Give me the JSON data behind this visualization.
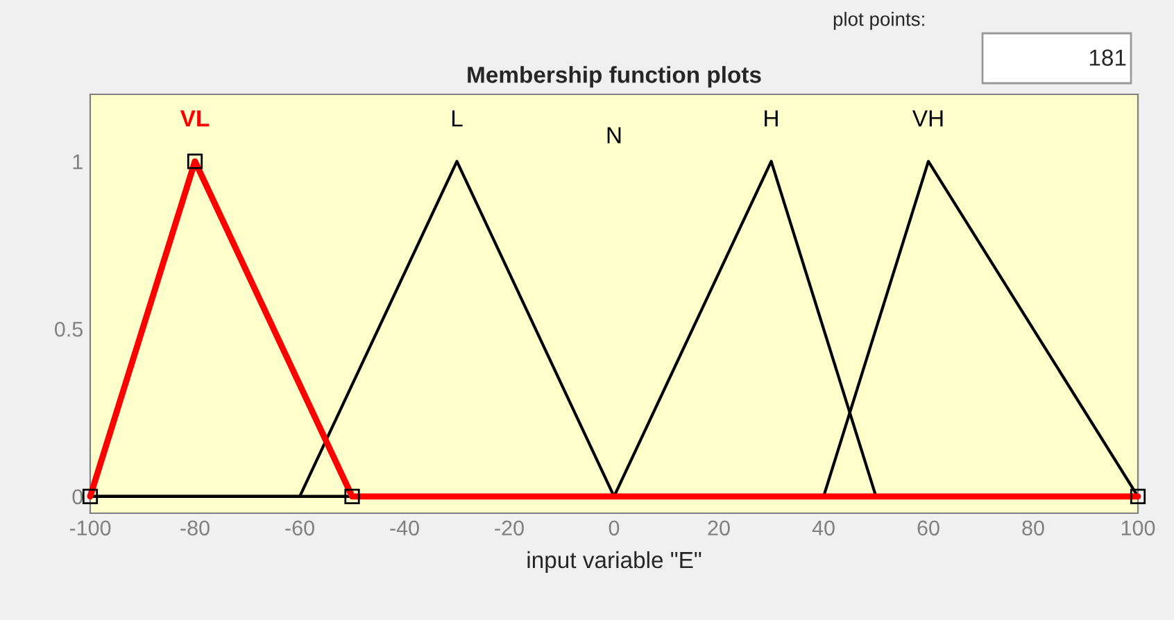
{
  "chart_data": {
    "type": "line",
    "title": "Membership function plots",
    "xlabel": "input variable \"E\"",
    "annotations": [
      "plot points:",
      "181",
      "N"
    ],
    "series": [
      {
        "name": "VL",
        "color": "#ff0000",
        "x": [
          -100,
          -80,
          -50,
          100
        ],
        "values": [
          0,
          1,
          0,
          0
        ],
        "marker": "square"
      },
      {
        "name": "L",
        "color": "#000000",
        "x": [
          -100,
          -60,
          -30,
          0,
          100
        ],
        "values": [
          0,
          0,
          1,
          0,
          0
        ]
      },
      {
        "name": "H",
        "color": "#000000",
        "x": [
          -100,
          0,
          30,
          50,
          100
        ],
        "values": [
          0,
          0,
          1,
          0,
          0
        ]
      },
      {
        "name": "VH",
        "color": "#000000",
        "x": [
          -100,
          40,
          60,
          100
        ],
        "values": [
          0,
          0,
          1,
          0
        ]
      }
    ],
    "xlim": [
      -100,
      100
    ],
    "ylim": [
      -0.05,
      1.2
    ],
    "xticks": [
      -100,
      -80,
      -60,
      -40,
      -20,
      0,
      20,
      40,
      60,
      80,
      100
    ],
    "yticks": [
      0,
      0.5,
      1
    ],
    "grid": false,
    "legend": false
  }
}
